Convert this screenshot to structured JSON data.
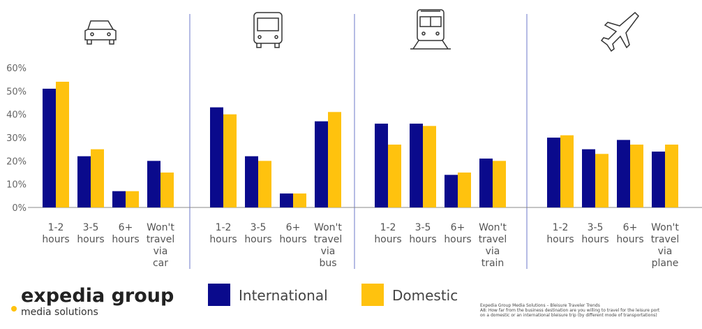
{
  "chart_data": {
    "type": "bar",
    "categories": [
      "1-2\nhours",
      "3-5\nhours",
      "6+\nhours",
      "Won't\ntravel\nvia\ncar",
      "1-2\nhours",
      "3-5\nhours",
      "6+\nhours",
      "Won't\ntravel\nvia\nbus",
      "1-2\nhours",
      "3-5\nhours",
      "6+\nhours",
      "Won't\ntravel\nvia\ntrain",
      "1-2\nhours",
      "3-5\nhours",
      "6+\nhours",
      "Won't\ntravel\nvia\nplane"
    ],
    "series": [
      {
        "name": "International",
        "color": "#0a0a8c",
        "values": [
          51,
          22,
          7,
          20,
          43,
          22,
          6,
          37,
          36,
          36,
          14,
          21,
          30,
          25,
          29,
          24
        ]
      },
      {
        "name": "Domestic",
        "color": "#ffc20e",
        "values": [
          54,
          25,
          7,
          15,
          40,
          20,
          6,
          41,
          27,
          35,
          15,
          20,
          31,
          23,
          27,
          27
        ]
      }
    ],
    "ylim": [
      0,
      60
    ],
    "yticks": [
      {
        "value": 0,
        "label": "0%"
      },
      {
        "value": 10,
        "label": "10%"
      },
      {
        "value": 20,
        "label": "20%"
      },
      {
        "value": 30,
        "label": "30%"
      },
      {
        "value": 40,
        "label": "40%"
      },
      {
        "value": 50,
        "label": "50%"
      },
      {
        "value": 60,
        "label": "60%"
      }
    ],
    "grid": false
  },
  "branding": {
    "logo": "expedia group",
    "tagline": "media solutions",
    "footnote": [
      "Expedia Group Media Solutions – Bleisure Traveler Trends",
      "A8: How far from the business destination are you willing to travel for the leisure port",
      "on a domestic or an international bleisure trip (by different mode of transportations)"
    ]
  }
}
